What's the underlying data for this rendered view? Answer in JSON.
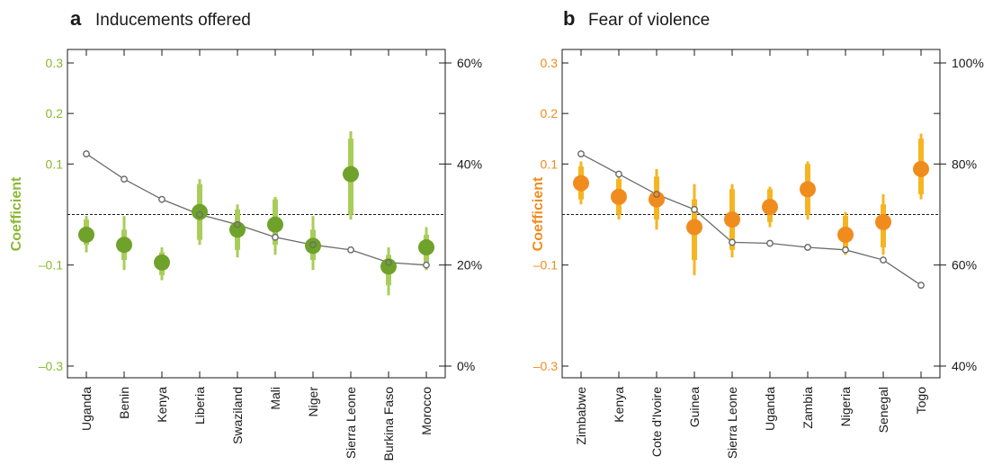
{
  "panels": [
    {
      "letter": "a",
      "title": "Inducements offered",
      "ylabel": "Coefficient",
      "accent": "#8ab832",
      "bar_light": "#a9cd5a",
      "dot": "#6fa22a",
      "left_ticks": [
        {
          "v": 0.3,
          "label": "0.3"
        },
        {
          "v": 0.2,
          "label": "0.2"
        },
        {
          "v": 0.1,
          "label": "0.1"
        },
        {
          "v": -0.1,
          "label": "–0.1"
        },
        {
          "v": -0.3,
          "label": "–0.3"
        }
      ],
      "right_ticks": [
        {
          "v": 60,
          "label": "60%"
        },
        {
          "v": 40,
          "label": "40%"
        },
        {
          "v": 20,
          "label": "20%"
        },
        {
          "v": 0,
          "label": "0%"
        }
      ]
    },
    {
      "letter": "b",
      "title": "Fear of violence",
      "ylabel": "Coefficient",
      "accent": "#f08c1e",
      "bar_light": "#f5b523",
      "dot": "#f08c1e",
      "left_ticks": [
        {
          "v": 0.3,
          "label": "0.3"
        },
        {
          "v": 0.2,
          "label": "0.2"
        },
        {
          "v": 0.1,
          "label": "0.1"
        },
        {
          "v": -0.1,
          "label": "–0.1"
        },
        {
          "v": -0.3,
          "label": "–0.3"
        }
      ],
      "right_ticks": [
        {
          "v": 100,
          "label": "100%"
        },
        {
          "v": 80,
          "label": "80%"
        },
        {
          "v": 60,
          "label": "60%"
        },
        {
          "v": 40,
          "label": "40%"
        }
      ]
    }
  ],
  "chart_data": [
    {
      "type": "scatter",
      "title": "Inducements offered",
      "ylabel": "Coefficient",
      "ylim": [
        -0.32,
        0.32
      ],
      "y2lim": [
        -2,
        62
      ],
      "categories": [
        "Uganda",
        "Benin",
        "Kenya",
        "Liberia",
        "Swaziland",
        "Mali",
        "Niger",
        "Sierra Leone",
        "Burkina Faso",
        "Morocco"
      ],
      "series": [
        {
          "values": [
            -0.04,
            -0.06,
            -0.095,
            0.005,
            -0.03,
            -0.02,
            -0.062,
            0.08,
            -0.103,
            -0.065
          ],
          "ci90": [
            [
              -0.06,
              -0.01
            ],
            [
              -0.09,
              -0.03
            ],
            [
              -0.12,
              -0.075
            ],
            [
              -0.05,
              0.06
            ],
            [
              -0.07,
              0.01
            ],
            [
              -0.06,
              0.03
            ],
            [
              -0.09,
              -0.03
            ],
            [
              0.0,
              0.15
            ],
            [
              -0.14,
              -0.08
            ],
            [
              -0.095,
              -0.04
            ]
          ],
          "ci95": [
            [
              -0.075,
              -0.003
            ],
            [
              -0.11,
              -0.003
            ],
            [
              -0.13,
              -0.065
            ],
            [
              -0.06,
              0.07
            ],
            [
              -0.085,
              0.02
            ],
            [
              -0.08,
              0.035
            ],
            [
              -0.11,
              -0.003
            ],
            [
              -0.01,
              0.165
            ],
            [
              -0.16,
              -0.065
            ],
            [
              -0.11,
              -0.025
            ]
          ]
        },
        {
          "axis": "right",
          "values": [
            42,
            37,
            33,
            30,
            28,
            25.5,
            24,
            23,
            20.5,
            20
          ]
        }
      ],
      "reference_line": 0
    },
    {
      "type": "scatter",
      "title": "Fear of violence",
      "ylabel": "Coefficient",
      "ylim": [
        -0.32,
        0.32
      ],
      "y2lim": [
        38,
        102
      ],
      "categories": [
        "Zimbabwe",
        "Kenya",
        "Cote d'Ivoire",
        "Guinea",
        "Sierra Leone",
        "Uganda",
        "Zambia",
        "Nigeria",
        "Senegal",
        "Togo"
      ],
      "series": [
        {
          "values": [
            0.062,
            0.035,
            0.03,
            -0.025,
            -0.01,
            0.015,
            0.05,
            -0.04,
            -0.015,
            0.09
          ],
          "ci90": [
            [
              0.03,
              0.095
            ],
            [
              0.0,
              0.07
            ],
            [
              -0.01,
              0.075
            ],
            [
              -0.09,
              0.03
            ],
            [
              -0.07,
              0.05
            ],
            [
              -0.015,
              0.05
            ],
            [
              0.0,
              0.1
            ],
            [
              -0.07,
              -0.003
            ],
            [
              -0.065,
              0.02
            ],
            [
              0.04,
              0.15
            ]
          ],
          "ci95": [
            [
              0.02,
              0.105
            ],
            [
              -0.01,
              0.075
            ],
            [
              -0.03,
              0.09
            ],
            [
              -0.12,
              0.06
            ],
            [
              -0.085,
              0.06
            ],
            [
              -0.025,
              0.055
            ],
            [
              -0.01,
              0.105
            ],
            [
              -0.08,
              0.005
            ],
            [
              -0.08,
              0.04
            ],
            [
              0.03,
              0.16
            ]
          ]
        },
        {
          "axis": "right",
          "values": [
            82,
            78,
            74,
            71,
            64.5,
            64.3,
            63.5,
            63,
            61,
            56
          ]
        }
      ],
      "reference_line": 0
    }
  ]
}
